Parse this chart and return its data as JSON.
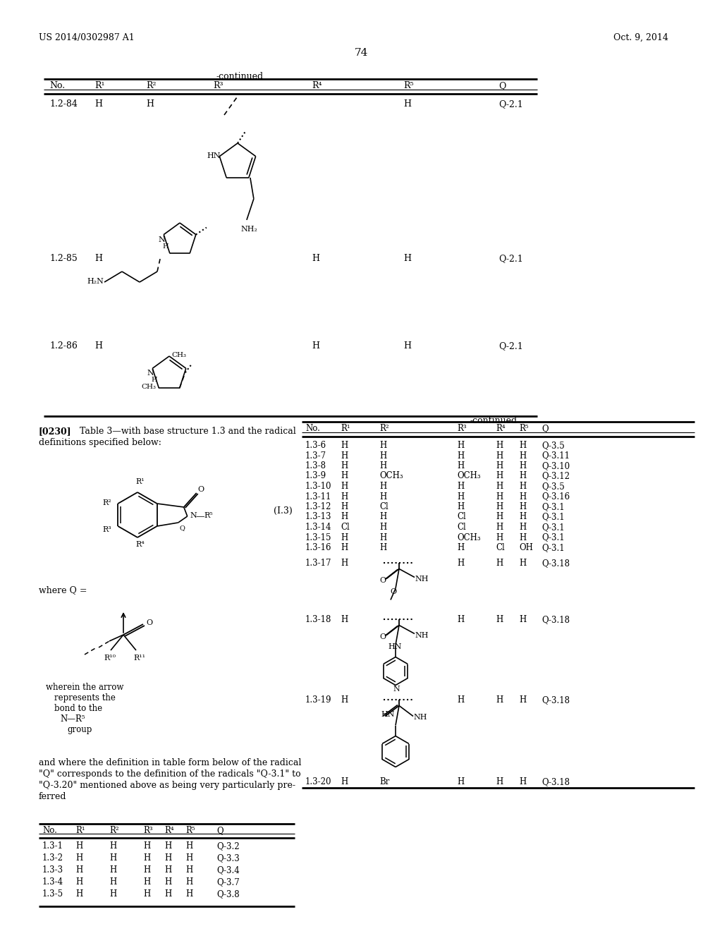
{
  "page_number": "74",
  "patent_number": "US 2014/0302987 A1",
  "patent_date": "Oct. 9, 2014",
  "bg": "#ffffff",
  "continued_top": "-continued",
  "table_top_headers": [
    "No.",
    "R¹",
    "R²",
    "R³",
    "R⁴",
    "R⁵",
    "Q"
  ],
  "paragraph_label": "[0230]",
  "paragraph_text": "Table 3—with base structure 1.3 and the radical",
  "paragraph_text2": "definitions specified below:",
  "struct_label": "(I.3)",
  "where_Q": "where Q =",
  "arrow_note": "wherein the arrow\n   represents the\n    bond to the\n      N—R⁵\n       group",
  "and_text_1": "and where the definition in table form below of the radical",
  "and_text_2": "\"Q\" corresponds to the definition of the radicals \"Q-3.1\" to",
  "and_text_3": "\"Q-3.20\" mentioned above as being very particularly pre-",
  "and_text_4": "ferred",
  "btable_headers": [
    "No.",
    "R¹",
    "R²",
    "R³",
    "R⁴",
    "R⁵",
    "Q"
  ],
  "btable_rows": [
    [
      "1.3-1",
      "H",
      "H",
      "H",
      "H",
      "H",
      "Q-3.2"
    ],
    [
      "1.3-2",
      "H",
      "H",
      "H",
      "H",
      "H",
      "Q-3.3"
    ],
    [
      "1.3-3",
      "H",
      "H",
      "H",
      "H",
      "H",
      "Q-3.4"
    ],
    [
      "1.3-4",
      "H",
      "H",
      "H",
      "H",
      "H",
      "Q-3.7"
    ],
    [
      "1.3-5",
      "H",
      "H",
      "H",
      "H",
      "H",
      "Q-3.8"
    ]
  ],
  "continued_right": "-continued",
  "rtable_headers": [
    "No.",
    "R¹",
    "R²",
    "R³",
    "R⁴",
    "R⁵",
    "Q"
  ],
  "rtable_simple": [
    [
      "1.3-6",
      "H",
      "H",
      "H",
      "H",
      "H",
      "Q-3.5"
    ],
    [
      "1.3-7",
      "H",
      "H",
      "H",
      "H",
      "H",
      "Q-3.11"
    ],
    [
      "1.3-8",
      "H",
      "H",
      "H",
      "H",
      "H",
      "Q-3.10"
    ],
    [
      "1.3-9",
      "H",
      "OCH₃",
      "OCH₃",
      "H",
      "H",
      "Q-3.12"
    ],
    [
      "1.3-10",
      "H",
      "H",
      "H",
      "H",
      "H",
      "Q-3.5"
    ],
    [
      "1.3-11",
      "H",
      "H",
      "H",
      "H",
      "H",
      "Q-3.16"
    ],
    [
      "1.3-12",
      "H",
      "Cl",
      "H",
      "H",
      "H",
      "Q-3.1"
    ],
    [
      "1.3-13",
      "H",
      "H",
      "Cl",
      "H",
      "H",
      "Q-3.1"
    ],
    [
      "1.3-14",
      "Cl",
      "H",
      "Cl",
      "H",
      "H",
      "Q-3.1"
    ],
    [
      "1.3-15",
      "H",
      "H",
      "OCH₃",
      "H",
      "H",
      "Q-3.1"
    ],
    [
      "1.3-16",
      "H",
      "H",
      "H",
      "Cl",
      "OH",
      "Q-3.1"
    ]
  ]
}
